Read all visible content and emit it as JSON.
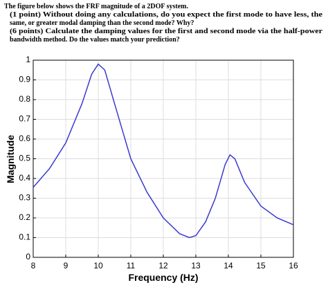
{
  "question": {
    "lines": [
      "The figure below shows the FRF magnitude of a 2DOF system.",
      "(1 point) Without doing any calculations, do you expect the first mode to have less, the",
      "same, or greater modal damping than the second mode? Why?",
      "(6 points) Calculate the damping values for the first and second mode via the half-power",
      "bandwidth method. Do the values match your prediction?"
    ]
  },
  "chart_data": {
    "type": "line",
    "x_label": "Frequency (Hz)",
    "y_label": "Magnitude",
    "series": [
      {
        "color": "#3a3ad0",
        "x": [
          8,
          8.5,
          9,
          9.5,
          9.8,
          10,
          10.2,
          10.5,
          11,
          11.5,
          12,
          12.5,
          12.8,
          13,
          13.3,
          13.6,
          13.9,
          14.05,
          14.2,
          14.5,
          15,
          15.5,
          16
        ],
        "values": [
          0.355,
          0.45,
          0.58,
          0.78,
          0.93,
          0.98,
          0.95,
          0.78,
          0.5,
          0.33,
          0.2,
          0.12,
          0.1,
          0.11,
          0.18,
          0.3,
          0.47,
          0.52,
          0.5,
          0.38,
          0.26,
          0.2,
          0.165
        ]
      }
    ],
    "xlim": [
      8,
      16
    ],
    "xticks": [
      8,
      9,
      10,
      11,
      12,
      13,
      14,
      15,
      16
    ],
    "ylim": [
      0,
      1
    ],
    "yticks": [
      0,
      0.1,
      0.2,
      0.3,
      0.4,
      0.5,
      0.6,
      0.7,
      0.8,
      0.9,
      1
    ],
    "grid": true
  }
}
